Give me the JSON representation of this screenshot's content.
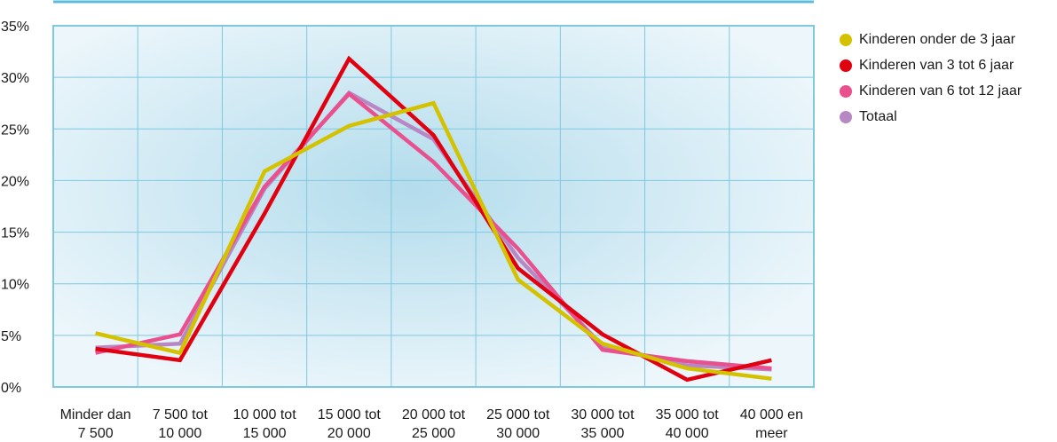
{
  "chart_data": {
    "type": "line",
    "title": "",
    "xlabel": "",
    "ylabel": "",
    "categories": [
      [
        "Minder dan",
        "7 500"
      ],
      [
        "7 500 tot",
        "10 000"
      ],
      [
        "10 000 tot",
        "15 000"
      ],
      [
        "15 000 tot",
        "20 000"
      ],
      [
        "20 000 tot",
        "25 000"
      ],
      [
        "25 000 tot",
        "30 000"
      ],
      [
        "30 000 tot",
        "35 000"
      ],
      [
        "35 000 tot",
        "40 000"
      ],
      [
        "40 000 en",
        "meer"
      ]
    ],
    "y_ticks": [
      "0%",
      "5%",
      "10%",
      "15%",
      "20%",
      "25%",
      "30%",
      "35%"
    ],
    "ylim": [
      0,
      35
    ],
    "grid": true,
    "legend_position": "right",
    "colors": {
      "plot_background_center": "#b3dcec",
      "plot_background_edge": "#ecf6fb",
      "grid": "#7fc8e0",
      "frame": "#7fc8e0",
      "top_rule": "#5bbbd9"
    },
    "series": [
      {
        "name": "Totaal",
        "color": "#b888c4",
        "values": [
          3.8,
          4.2,
          19.2,
          28.5,
          24.0,
          12.5,
          4.0,
          2.1,
          1.7
        ]
      },
      {
        "name": "Kinderen van 6 tot 12 jaar",
        "color": "#e8508e",
        "values": [
          3.3,
          5.1,
          19.4,
          28.4,
          21.8,
          13.4,
          3.6,
          2.5,
          1.8
        ]
      },
      {
        "name": "Kinderen van 3 tot 6 jaar",
        "color": "#e00010",
        "values": [
          3.7,
          2.6,
          16.8,
          31.8,
          24.4,
          11.5,
          5.1,
          0.7,
          2.6
        ]
      },
      {
        "name": "Kinderen onder de 3 jaar",
        "color": "#d4c200",
        "values": [
          5.2,
          3.3,
          20.9,
          25.3,
          27.5,
          10.4,
          4.2,
          1.8,
          0.8
        ]
      }
    ],
    "legend": [
      {
        "label": "Kinderen onder de 3 jaar",
        "color": "#d4c200"
      },
      {
        "label": "Kinderen van 3 tot 6 jaar",
        "color": "#e00010"
      },
      {
        "label": "Kinderen van 6 tot 12 jaar",
        "color": "#e8508e"
      },
      {
        "label": "Totaal",
        "color": "#b888c4"
      }
    ]
  }
}
